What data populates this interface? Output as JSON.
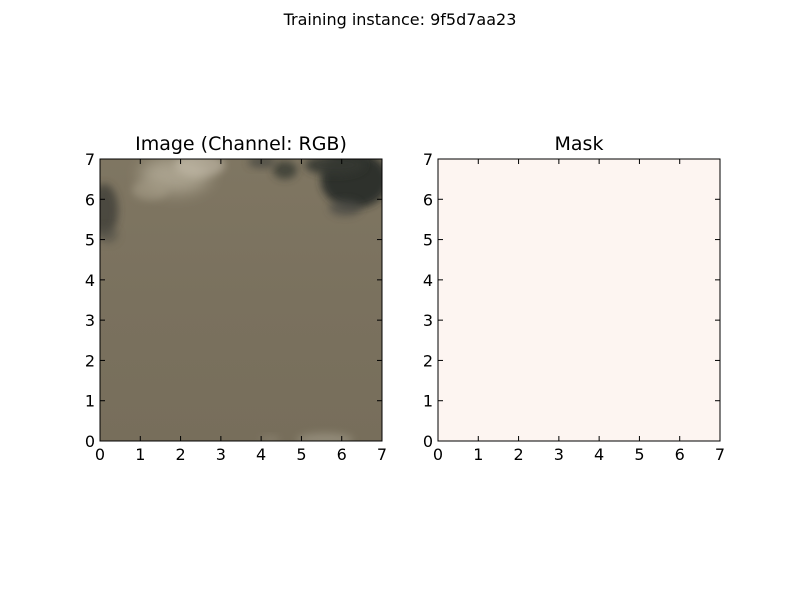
{
  "figure": {
    "suptitle": "Training instance: 9f5d7aa23"
  },
  "chart_data": [
    {
      "type": "heatmap",
      "title": "Image (Channel: RGB)",
      "xlabel": "",
      "ylabel": "",
      "xlim": [
        0,
        7
      ],
      "ylim": [
        0,
        7
      ],
      "xticks": [
        "0",
        "1",
        "2",
        "3",
        "4",
        "5",
        "6",
        "7"
      ],
      "yticks": [
        "0",
        "1",
        "2",
        "3",
        "4",
        "5",
        "6",
        "7"
      ],
      "content": "satellite image tile, mostly uniform olive-brown water surface with dark cloud shadows and light haze near the top edges",
      "base_color": "#7d7361"
    },
    {
      "type": "heatmap",
      "title": "Mask",
      "xlabel": "",
      "ylabel": "",
      "xlim": [
        0,
        7
      ],
      "ylim": [
        0,
        7
      ],
      "xticks": [
        "0",
        "1",
        "2",
        "3",
        "4",
        "5",
        "6",
        "7"
      ],
      "yticks": [
        "0",
        "1",
        "2",
        "3",
        "4",
        "5",
        "6",
        "7"
      ],
      "fill_color": "#fdf5f1",
      "mask_value": 0
    }
  ]
}
